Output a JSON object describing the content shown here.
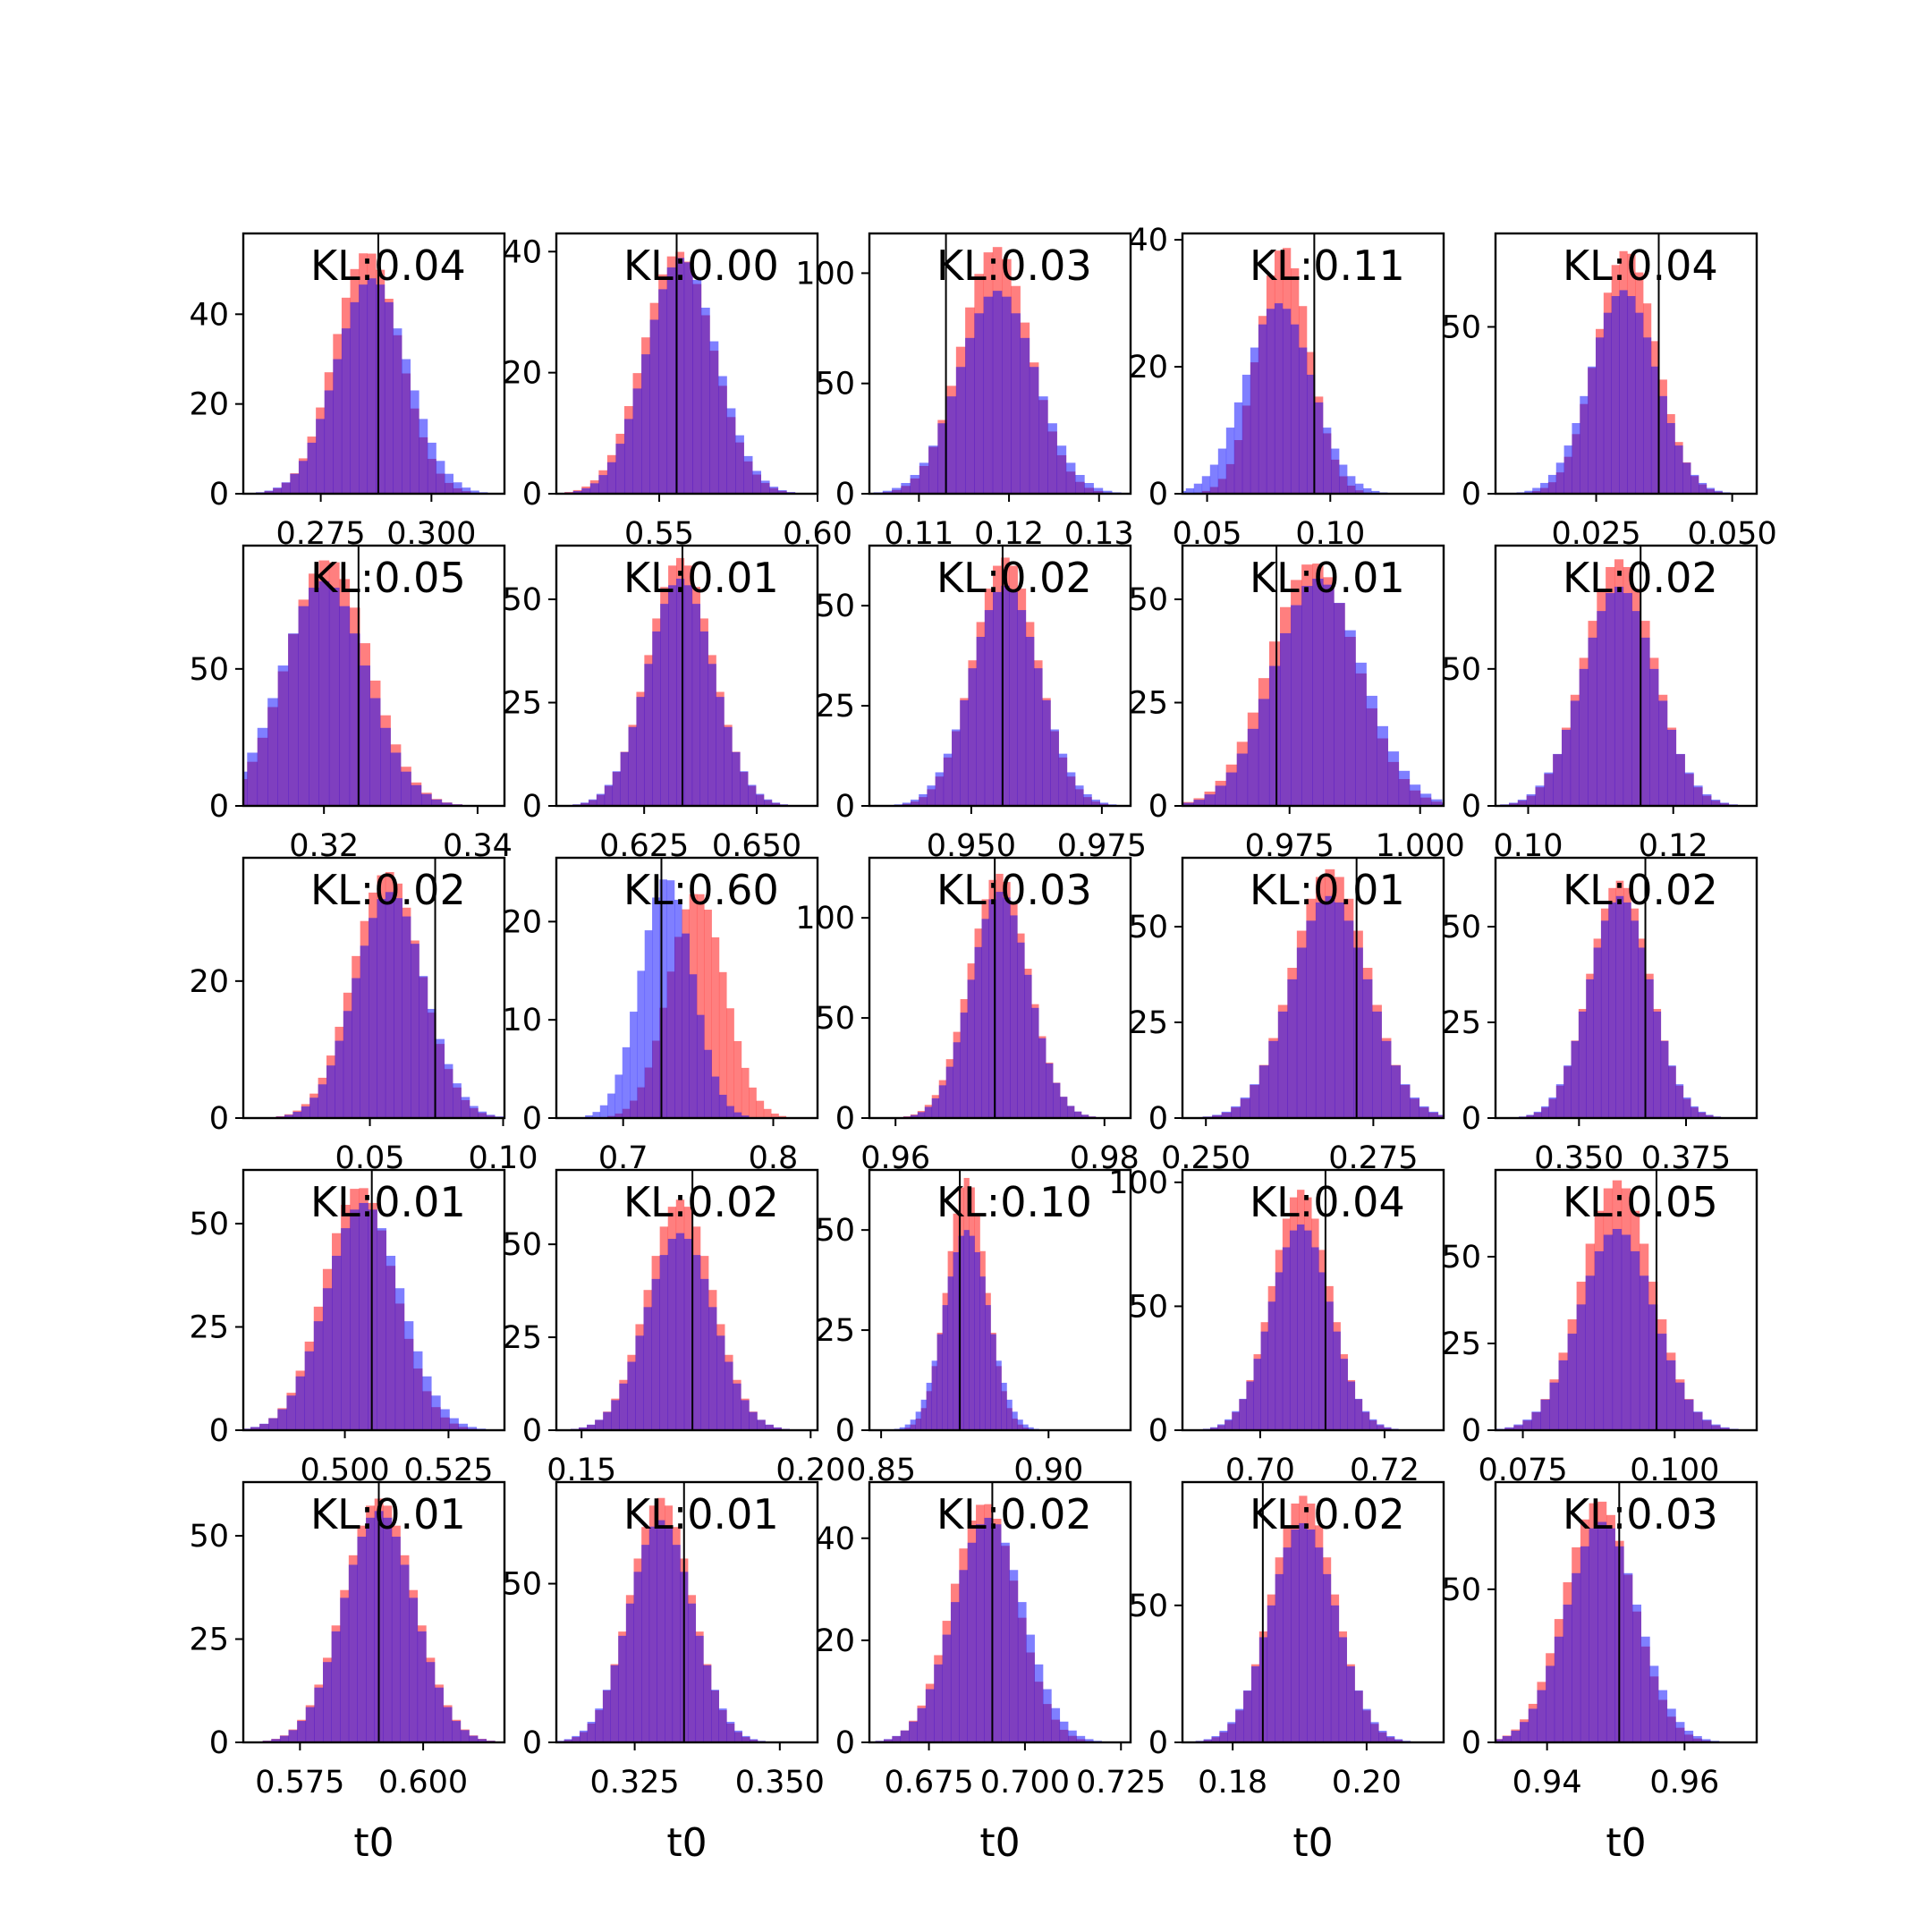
{
  "figure": {
    "colors": {
      "series_a": "#ff0000",
      "series_b": "#0000ff",
      "overlap": "#7f00c0",
      "marker_line": "#000000",
      "frame": "#000000",
      "background": "#ffffff"
    },
    "layout": "5x5 grid of histograms"
  },
  "chart_data": [
    {
      "type": "bar",
      "title": "KL:0.04",
      "xlabel": "",
      "xticks": [
        "0.275",
        "0.300"
      ],
      "xtick_values": [
        0.275,
        0.3
      ],
      "xlim": [
        0.2575,
        0.3165
      ],
      "ylim": [
        0,
        58
      ],
      "yticks": [
        "0",
        "20",
        "40"
      ],
      "ytick_values": [
        0,
        20,
        40
      ],
      "mean_red": 0.2855,
      "sd_red": 0.0074,
      "mean_blue": 0.2865,
      "sd_blue": 0.008,
      "peak_red": 54,
      "peak_blue": 48,
      "marker": 0.288,
      "legend": []
    },
    {
      "type": "bar",
      "title": "KL:0.00",
      "xlabel": "",
      "xticks": [
        "0.55",
        "0.60"
      ],
      "xtick_values": [
        0.55,
        0.6
      ],
      "xlim": [
        0.5175,
        0.6
      ],
      "ylim": [
        0,
        43
      ],
      "yticks": [
        "0",
        "20",
        "40"
      ],
      "ytick_values": [
        0,
        20,
        40
      ],
      "mean_red": 0.556,
      "sd_red": 0.011,
      "mean_blue": 0.557,
      "sd_blue": 0.011,
      "peak_red": 40,
      "peak_blue": 39,
      "marker": 0.5555,
      "legend": []
    },
    {
      "type": "bar",
      "title": "KL:0.03",
      "xlabel": "",
      "xticks": [
        "0.11",
        "0.12",
        "0.13"
      ],
      "xtick_values": [
        0.11,
        0.12,
        0.13
      ],
      "xlim": [
        0.1045,
        0.1335
      ],
      "ylim": [
        0,
        118
      ],
      "yticks": [
        "0",
        "50",
        "100"
      ],
      "ytick_values": [
        0,
        50,
        100
      ],
      "mean_red": 0.1185,
      "sd_red": 0.0038,
      "mean_blue": 0.1187,
      "sd_blue": 0.0042,
      "peak_red": 112,
      "peak_blue": 92,
      "marker": 0.113,
      "legend": []
    },
    {
      "type": "bar",
      "title": "KL:0.11",
      "xlabel": "",
      "xticks": [
        "0.05",
        "0.10"
      ],
      "xtick_values": [
        0.05,
        0.1
      ],
      "xlim": [
        0.04,
        0.146
      ],
      "ylim": [
        0,
        41
      ],
      "yticks": [
        "0",
        "20",
        "40"
      ],
      "ytick_values": [
        0,
        20,
        40
      ],
      "mean_red": 0.081,
      "sd_red": 0.0105,
      "mean_blue": 0.079,
      "sd_blue": 0.0135,
      "peak_red": 39,
      "peak_blue": 30,
      "marker": 0.0935,
      "legend": []
    },
    {
      "type": "bar",
      "title": "KL:0.04",
      "xlabel": "",
      "xticks": [
        "0.025",
        "0.050"
      ],
      "xtick_values": [
        0.025,
        0.05
      ],
      "xlim": [
        0.0065,
        0.0545
      ],
      "ylim": [
        0,
        78
      ],
      "yticks": [
        "0",
        "50"
      ],
      "ytick_values": [
        0,
        50
      ],
      "mean_red": 0.0305,
      "sd_red": 0.0055,
      "mean_blue": 0.03,
      "sd_blue": 0.006,
      "peak_red": 73,
      "peak_blue": 61,
      "marker": 0.0365,
      "legend": []
    },
    {
      "type": "bar",
      "title": "KL:0.05",
      "xlabel": "",
      "xticks": [
        "0.32",
        "0.34"
      ],
      "xtick_values": [
        0.32,
        0.34
      ],
      "xlim": [
        0.3095,
        0.3435
      ],
      "ylim": [
        0,
        95
      ],
      "yticks": [
        "0",
        "50"
      ],
      "ytick_values": [
        0,
        50
      ],
      "mean_red": 0.3205,
      "sd_red": 0.0053,
      "mean_blue": 0.32,
      "sd_blue": 0.0055,
      "peak_red": 90,
      "peak_blue": 82,
      "marker": 0.3245,
      "legend": []
    },
    {
      "type": "bar",
      "title": "KL:0.01",
      "xlabel": "",
      "xticks": [
        "0.625",
        "0.650"
      ],
      "xtick_values": [
        0.625,
        0.65
      ],
      "xlim": [
        0.6055,
        0.6635
      ],
      "ylim": [
        0,
        63
      ],
      "yticks": [
        "0",
        "25",
        "50"
      ],
      "ytick_values": [
        0,
        25,
        50
      ],
      "mean_red": 0.633,
      "sd_red": 0.0071,
      "mean_blue": 0.633,
      "sd_blue": 0.0073,
      "peak_red": 60,
      "peak_blue": 55,
      "marker": 0.6335,
      "legend": []
    },
    {
      "type": "bar",
      "title": "KL:0.02",
      "xlabel": "",
      "xticks": [
        "0.950",
        "0.975"
      ],
      "xtick_values": [
        0.95,
        0.975
      ],
      "xlim": [
        0.9305,
        0.9805
      ],
      "ylim": [
        0,
        65
      ],
      "yticks": [
        "0",
        "25",
        "50"
      ],
      "ytick_values": [
        0,
        25,
        50
      ],
      "mean_red": 0.9565,
      "sd_red": 0.0061,
      "mean_blue": 0.9565,
      "sd_blue": 0.0065,
      "peak_red": 62,
      "peak_blue": 55,
      "marker": 0.956,
      "legend": []
    },
    {
      "type": "bar",
      "title": "KL:0.01",
      "xlabel": "",
      "xticks": [
        "0.975",
        "1.000"
      ],
      "xtick_values": [
        0.975,
        1.0
      ],
      "xlim": [
        0.9545,
        1.0045
      ],
      "ylim": [
        0,
        63
      ],
      "yticks": [
        "0",
        "25",
        "50"
      ],
      "ytick_values": [
        0,
        25,
        50
      ],
      "mean_red": 0.9795,
      "sd_red": 0.0083,
      "mean_blue": 0.9805,
      "sd_blue": 0.0085,
      "peak_red": 59,
      "peak_blue": 55,
      "marker": 0.9725,
      "legend": []
    },
    {
      "type": "bar",
      "title": "KL:0.02",
      "xlabel": "",
      "xticks": [
        "0.10",
        "0.12"
      ],
      "xtick_values": [
        0.1,
        0.12
      ],
      "xlim": [
        0.0955,
        0.1315
      ],
      "ylim": [
        0,
        95
      ],
      "yticks": [
        "0",
        "50"
      ],
      "ytick_values": [
        0,
        50
      ],
      "mean_red": 0.1125,
      "sd_red": 0.0048,
      "mean_blue": 0.1125,
      "sd_blue": 0.005,
      "peak_red": 90,
      "peak_blue": 80,
      "marker": 0.1155,
      "legend": []
    },
    {
      "type": "bar",
      "title": "KL:0.02",
      "xlabel": "",
      "xticks": [
        "0.05",
        "0.10"
      ],
      "xtick_values": [
        0.05,
        0.1
      ],
      "xlim": [
        0.0025,
        0.1005
      ],
      "ylim": [
        0,
        38
      ],
      "yticks": [
        "0",
        "20"
      ],
      "ytick_values": [
        0,
        20
      ],
      "mean_red": 0.0565,
      "sd_red": 0.0128,
      "mean_blue": 0.0575,
      "sd_blue": 0.013,
      "peak_red": 36,
      "peak_blue": 33,
      "marker": 0.0745,
      "legend": []
    },
    {
      "type": "bar",
      "title": "KL:0.60",
      "xlabel": "",
      "xticks": [
        "0.7",
        "0.8"
      ],
      "xtick_values": [
        0.7,
        0.8
      ],
      "xlim": [
        0.6555,
        0.8295
      ],
      "ylim": [
        0,
        26.5
      ],
      "yticks": [
        "0",
        "10",
        "20"
      ],
      "ytick_values": [
        0,
        10,
        20
      ],
      "mean_red": 0.749,
      "sd_red": 0.0186,
      "mean_blue": 0.729,
      "sd_blue": 0.0173,
      "peak_red": 23,
      "peak_blue": 24.5,
      "marker": 0.7255,
      "legend": []
    },
    {
      "type": "bar",
      "title": "KL:0.03",
      "xlabel": "",
      "xticks": [
        "0.96",
        "0.98"
      ],
      "xtick_values": [
        0.96,
        0.98
      ],
      "xlim": [
        0.9575,
        0.9825
      ],
      "ylim": [
        0,
        130
      ],
      "yticks": [
        "0",
        "50",
        "100"
      ],
      "ytick_values": [
        0,
        50,
        100
      ],
      "mean_red": 0.9699,
      "sd_red": 0.0028,
      "mean_blue": 0.97,
      "sd_blue": 0.0028,
      "peak_red": 122,
      "peak_blue": 113,
      "marker": 0.9695,
      "legend": []
    },
    {
      "type": "bar",
      "title": "KL:0.01",
      "xlabel": "",
      "xticks": [
        "0.250",
        "0.275"
      ],
      "xtick_values": [
        0.25,
        0.275
      ],
      "xlim": [
        0.2465,
        0.2855
      ],
      "ylim": [
        0,
        68
      ],
      "yticks": [
        "0",
        "25",
        "50"
      ],
      "ytick_values": [
        0,
        25,
        50
      ],
      "mean_red": 0.2685,
      "sd_red": 0.0056,
      "mean_blue": 0.2685,
      "sd_blue": 0.0058,
      "peak_red": 65,
      "peak_blue": 58,
      "marker": 0.2725,
      "legend": []
    },
    {
      "type": "bar",
      "title": "KL:0.02",
      "xlabel": "",
      "xticks": [
        "0.350",
        "0.375"
      ],
      "xtick_values": [
        0.35,
        0.375
      ],
      "xlim": [
        0.3305,
        0.3915
      ],
      "ylim": [
        0,
        68
      ],
      "yticks": [
        "0",
        "25",
        "50"
      ],
      "ytick_values": [
        0,
        25,
        50
      ],
      "mean_red": 0.3595,
      "sd_red": 0.007,
      "mean_blue": 0.3595,
      "sd_blue": 0.0072,
      "peak_red": 62,
      "peak_blue": 58,
      "marker": 0.3655,
      "legend": []
    },
    {
      "type": "bar",
      "title": "KL:0.01",
      "xlabel": "",
      "xticks": [
        "0.500",
        "0.525"
      ],
      "xtick_values": [
        0.5,
        0.525
      ],
      "xlim": [
        0.4755,
        0.5385
      ],
      "ylim": [
        0,
        63
      ],
      "yticks": [
        "0",
        "25",
        "50"
      ],
      "ytick_values": [
        0,
        25,
        50
      ],
      "mean_red": 0.5035,
      "sd_red": 0.0085,
      "mean_blue": 0.5045,
      "sd_blue": 0.009,
      "peak_red": 59,
      "peak_blue": 55,
      "marker": 0.5065,
      "legend": []
    },
    {
      "type": "bar",
      "title": "KL:0.02",
      "xlabel": "",
      "xticks": [
        "0.15",
        "0.20"
      ],
      "xtick_values": [
        0.15,
        0.2
      ],
      "xlim": [
        0.1445,
        0.2015
      ],
      "ylim": [
        0,
        70
      ],
      "yticks": [
        "0",
        "25",
        "50"
      ],
      "ytick_values": [
        0,
        25,
        50
      ],
      "mean_red": 0.1715,
      "sd_red": 0.0071,
      "mean_blue": 0.1715,
      "sd_blue": 0.0073,
      "peak_red": 62,
      "peak_blue": 53,
      "marker": 0.1742,
      "legend": []
    },
    {
      "type": "bar",
      "title": "KL:0.10",
      "xlabel": "",
      "xticks": [
        "0.85",
        "0.90"
      ],
      "xtick_values": [
        0.85,
        0.9
      ],
      "xlim": [
        0.8465,
        0.9245
      ],
      "ylim": [
        0,
        65
      ],
      "yticks": [
        "0",
        "25",
        "50"
      ],
      "ytick_values": [
        0,
        25,
        50
      ],
      "mean_red": 0.8755,
      "sd_red": 0.0058,
      "mean_blue": 0.8755,
      "sd_blue": 0.0066,
      "peak_red": 63,
      "peak_blue": 50,
      "marker": 0.8735,
      "legend": []
    },
    {
      "type": "bar",
      "title": "KL:0.04",
      "xlabel": "",
      "xticks": [
        "0.70",
        "0.72"
      ],
      "xtick_values": [
        0.7,
        0.72
      ],
      "xlim": [
        0.6875,
        0.7295
      ],
      "ylim": [
        0,
        105
      ],
      "yticks": [
        "0",
        "50",
        "100"
      ],
      "ytick_values": [
        0,
        50,
        100
      ],
      "mean_red": 0.7065,
      "sd_red": 0.0046,
      "mean_blue": 0.7065,
      "sd_blue": 0.0048,
      "peak_red": 97,
      "peak_blue": 83,
      "marker": 0.7105,
      "legend": []
    },
    {
      "type": "bar",
      "title": "KL:0.05",
      "xlabel": "",
      "xticks": [
        "0.075",
        "0.100"
      ],
      "xtick_values": [
        0.075,
        0.1
      ],
      "xlim": [
        0.0705,
        0.1135
      ],
      "ylim": [
        0,
        75
      ],
      "yticks": [
        "0",
        "25",
        "50"
      ],
      "ytick_values": [
        0,
        25,
        50
      ],
      "mean_red": 0.0905,
      "sd_red": 0.0058,
      "mean_blue": 0.0905,
      "sd_blue": 0.0061,
      "peak_red": 72,
      "peak_blue": 58,
      "marker": 0.097,
      "legend": []
    },
    {
      "type": "bar",
      "title": "KL:0.01",
      "xlabel": "t0",
      "xticks": [
        "0.575",
        "0.600"
      ],
      "xtick_values": [
        0.575,
        0.6
      ],
      "xlim": [
        0.5635,
        0.6165
      ],
      "ylim": [
        0,
        63
      ],
      "yticks": [
        "0",
        "25",
        "50"
      ],
      "ytick_values": [
        0,
        25,
        50
      ],
      "mean_red": 0.591,
      "sd_red": 0.0072,
      "mean_blue": 0.591,
      "sd_blue": 0.0072,
      "peak_red": 59,
      "peak_blue": 56,
      "marker": 0.591,
      "legend": []
    },
    {
      "type": "bar",
      "title": "KL:0.01",
      "xlabel": "t0",
      "xticks": [
        "0.325",
        "0.350"
      ],
      "xtick_values": [
        0.325,
        0.35
      ],
      "xlim": [
        0.3115,
        0.3565
      ],
      "ylim": [
        0,
        82
      ],
      "yticks": [
        "0",
        "50"
      ],
      "ytick_values": [
        0,
        50
      ],
      "mean_red": 0.3295,
      "sd_red": 0.0053,
      "mean_blue": 0.3295,
      "sd_blue": 0.0055,
      "peak_red": 77,
      "peak_blue": 70,
      "marker": 0.3335,
      "legend": []
    },
    {
      "type": "bar",
      "title": "KL:0.02",
      "xlabel": "t0",
      "xticks": [
        "0.675",
        "0.700",
        "0.725"
      ],
      "xtick_values": [
        0.675,
        0.7,
        0.725
      ],
      "xlim": [
        0.6595,
        0.7275
      ],
      "ylim": [
        0,
        51
      ],
      "yticks": [
        "0",
        "20",
        "40"
      ],
      "ytick_values": [
        0,
        20,
        40
      ],
      "mean_red": 0.6895,
      "sd_red": 0.0085,
      "mean_blue": 0.6905,
      "sd_blue": 0.009,
      "peak_red": 47,
      "peak_blue": 44,
      "marker": 0.6915,
      "legend": []
    },
    {
      "type": "bar",
      "title": "KL:0.02",
      "xlabel": "t0",
      "xticks": [
        "0.18",
        "0.20"
      ],
      "xtick_values": [
        0.18,
        0.2
      ],
      "xlim": [
        0.1725,
        0.2115
      ],
      "ylim": [
        0,
        95
      ],
      "yticks": [
        "0",
        "50"
      ],
      "ytick_values": [
        0,
        50
      ],
      "mean_red": 0.1905,
      "sd_red": 0.0047,
      "mean_blue": 0.1905,
      "sd_blue": 0.0049,
      "peak_red": 90,
      "peak_blue": 80,
      "marker": 0.1845,
      "legend": []
    },
    {
      "type": "bar",
      "title": "KL:0.03",
      "xlabel": "t0",
      "xticks": [
        "0.94",
        "0.96"
      ],
      "xtick_values": [
        0.94,
        0.96
      ],
      "xlim": [
        0.9325,
        0.9705
      ],
      "ylim": [
        0,
        85
      ],
      "yticks": [
        "0",
        "50"
      ],
      "ytick_values": [
        0,
        50
      ],
      "mean_red": 0.9475,
      "sd_red": 0.005,
      "mean_blue": 0.948,
      "sd_blue": 0.0052,
      "peak_red": 79,
      "peak_blue": 72,
      "marker": 0.9505,
      "legend": []
    }
  ]
}
